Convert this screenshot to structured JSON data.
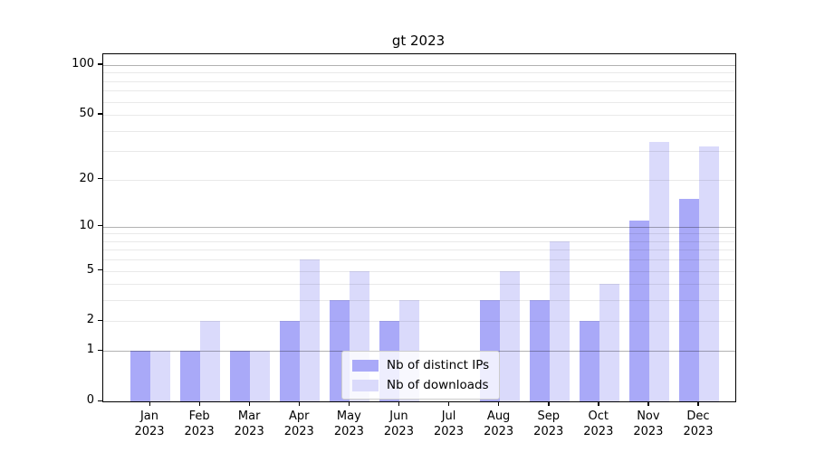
{
  "title": "gt 2023",
  "legend": {
    "items": [
      {
        "label": "Nb of distinct IPs",
        "color": "#a9a9f8"
      },
      {
        "label": "Nb of downloads",
        "color": "#dadafb"
      }
    ]
  },
  "chart_data": {
    "type": "bar",
    "title": "gt 2023",
    "categories": [
      "Jan",
      "Feb",
      "Mar",
      "Apr",
      "May",
      "Jun",
      "Jul",
      "Aug",
      "Sep",
      "Oct",
      "Nov",
      "Dec"
    ],
    "category_year": "2023",
    "series": [
      {
        "name": "Nb of distinct IPs",
        "color": "#a9a9f8",
        "values": [
          1,
          1,
          1,
          2,
          3,
          2,
          0,
          3,
          3,
          2,
          11,
          15
        ]
      },
      {
        "name": "Nb of downloads",
        "color": "#dadafb",
        "values": [
          1,
          2,
          1,
          6,
          5,
          3,
          0,
          5,
          8,
          4,
          34,
          32
        ]
      }
    ],
    "xlabel": "",
    "ylabel": "",
    "yscale": "log1p",
    "ylim": [
      0,
      116
    ],
    "yticks": [
      0,
      1,
      2,
      5,
      10,
      20,
      50,
      100
    ],
    "grid_major": [
      1,
      10,
      100
    ],
    "grid_minor": [
      2,
      3,
      4,
      5,
      6,
      7,
      8,
      9,
      20,
      30,
      40,
      50,
      60,
      70,
      80,
      90
    ],
    "grid": "on",
    "legend_position": "lower center"
  }
}
